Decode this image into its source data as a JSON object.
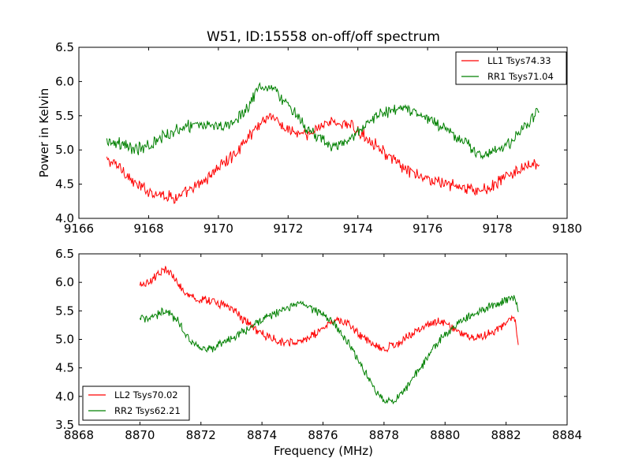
{
  "chart_data": [
    {
      "type": "line",
      "title": "W51, ID:15558 on-off/off spectrum",
      "xlabel": "",
      "ylabel": "Power in Kelvin",
      "xlim": [
        9166,
        9180
      ],
      "ylim": [
        4.0,
        6.5
      ],
      "xticks": [
        9166,
        9168,
        9170,
        9172,
        9174,
        9176,
        9178,
        9180
      ],
      "xtick_labels": [
        "9166",
        "9168",
        "9170",
        "9172",
        "9174",
        "9176",
        "9178",
        "9180"
      ],
      "yticks": [
        4.0,
        4.5,
        5.0,
        5.5,
        6.0,
        6.5
      ],
      "ytick_labels": [
        "4.0",
        "4.5",
        "5.0",
        "5.5",
        "6.0",
        "6.5"
      ],
      "legend_position": "top-right",
      "grid": false,
      "noise": 0.07,
      "series": [
        {
          "name": "LL1 Tsys74.33",
          "color": "#ff0000",
          "x_range": [
            9166.8,
            9179.2
          ],
          "points": [
            [
              9166.8,
              4.85
            ],
            [
              9167.2,
              4.75
            ],
            [
              9167.6,
              4.5
            ],
            [
              9168.0,
              4.4
            ],
            [
              9168.4,
              4.35
            ],
            [
              9168.8,
              4.3
            ],
            [
              9169.2,
              4.4
            ],
            [
              9169.6,
              4.55
            ],
            [
              9170.0,
              4.75
            ],
            [
              9170.4,
              4.9
            ],
            [
              9170.8,
              5.15
            ],
            [
              9171.2,
              5.4
            ],
            [
              9171.5,
              5.52
            ],
            [
              9171.8,
              5.35
            ],
            [
              9172.2,
              5.25
            ],
            [
              9172.6,
              5.2
            ],
            [
              9173.0,
              5.4
            ],
            [
              9173.4,
              5.4
            ],
            [
              9173.8,
              5.35
            ],
            [
              9174.2,
              5.2
            ],
            [
              9174.6,
              5.05
            ],
            [
              9175.0,
              4.85
            ],
            [
              9175.4,
              4.7
            ],
            [
              9175.8,
              4.6
            ],
            [
              9176.2,
              4.55
            ],
            [
              9176.6,
              4.5
            ],
            [
              9177.0,
              4.45
            ],
            [
              9177.4,
              4.4
            ],
            [
              9177.8,
              4.45
            ],
            [
              9178.2,
              4.6
            ],
            [
              9178.6,
              4.7
            ],
            [
              9179.2,
              4.8
            ]
          ]
        },
        {
          "name": "RR1 Tsys71.04",
          "color": "#008000",
          "x_range": [
            9166.8,
            9179.2
          ],
          "points": [
            [
              9166.8,
              5.15
            ],
            [
              9167.2,
              5.1
            ],
            [
              9167.6,
              5.0
            ],
            [
              9168.0,
              5.05
            ],
            [
              9168.4,
              5.2
            ],
            [
              9168.8,
              5.3
            ],
            [
              9169.2,
              5.35
            ],
            [
              9169.6,
              5.35
            ],
            [
              9170.0,
              5.35
            ],
            [
              9170.4,
              5.4
            ],
            [
              9170.8,
              5.6
            ],
            [
              9171.2,
              5.95
            ],
            [
              9171.6,
              5.9
            ],
            [
              9172.0,
              5.65
            ],
            [
              9172.4,
              5.4
            ],
            [
              9172.8,
              5.2
            ],
            [
              9173.2,
              5.05
            ],
            [
              9173.6,
              5.1
            ],
            [
              9174.0,
              5.25
            ],
            [
              9174.4,
              5.45
            ],
            [
              9174.8,
              5.55
            ],
            [
              9175.2,
              5.6
            ],
            [
              9175.6,
              5.55
            ],
            [
              9176.0,
              5.45
            ],
            [
              9176.4,
              5.35
            ],
            [
              9176.8,
              5.2
            ],
            [
              9177.2,
              5.05
            ],
            [
              9177.6,
              4.9
            ],
            [
              9178.0,
              5.0
            ],
            [
              9178.4,
              5.1
            ],
            [
              9178.8,
              5.35
            ],
            [
              9179.2,
              5.6
            ]
          ]
        }
      ]
    },
    {
      "type": "line",
      "title": "",
      "xlabel": "Frequency (MHz)",
      "ylabel": "",
      "xlim": [
        8868,
        8884
      ],
      "ylim": [
        3.5,
        6.5
      ],
      "xticks": [
        8868,
        8870,
        8872,
        8874,
        8876,
        8878,
        8880,
        8882,
        8884
      ],
      "xtick_labels": [
        "8868",
        "8870",
        "8872",
        "8874",
        "8876",
        "8878",
        "8880",
        "8882",
        "8884"
      ],
      "yticks": [
        3.5,
        4.0,
        4.5,
        5.0,
        5.5,
        6.0,
        6.5
      ],
      "ytick_labels": [
        "3.5",
        "4.0",
        "4.5",
        "5.0",
        "5.5",
        "6.0",
        "6.5"
      ],
      "legend_position": "bottom-left",
      "grid": false,
      "noise": 0.06,
      "series": [
        {
          "name": "LL2 Tsys70.02",
          "color": "#ff0000",
          "x_range": [
            8870.0,
            8882.4
          ],
          "points": [
            [
              8870.0,
              5.95
            ],
            [
              8870.4,
              6.05
            ],
            [
              8870.8,
              6.25
            ],
            [
              8871.1,
              6.1
            ],
            [
              8871.5,
              5.8
            ],
            [
              8871.9,
              5.7
            ],
            [
              8872.4,
              5.65
            ],
            [
              8872.8,
              5.6
            ],
            [
              8873.2,
              5.45
            ],
            [
              8873.6,
              5.25
            ],
            [
              8874.0,
              5.1
            ],
            [
              8874.4,
              5.0
            ],
            [
              8874.8,
              4.95
            ],
            [
              8875.2,
              4.95
            ],
            [
              8875.6,
              5.05
            ],
            [
              8876.0,
              5.2
            ],
            [
              8876.4,
              5.35
            ],
            [
              8876.8,
              5.3
            ],
            [
              8877.2,
              5.1
            ],
            [
              8877.6,
              4.9
            ],
            [
              8878.0,
              4.85
            ],
            [
              8878.4,
              4.9
            ],
            [
              8878.8,
              5.05
            ],
            [
              8879.2,
              5.2
            ],
            [
              8879.6,
              5.3
            ],
            [
              8880.0,
              5.3
            ],
            [
              8880.4,
              5.15
            ],
            [
              8880.8,
              5.05
            ],
            [
              8881.2,
              5.05
            ],
            [
              8881.6,
              5.15
            ],
            [
              8882.0,
              5.3
            ],
            [
              8882.3,
              5.4
            ],
            [
              8882.4,
              4.85
            ]
          ]
        },
        {
          "name": "RR2 Tsys62.21",
          "color": "#008000",
          "x_range": [
            8870.0,
            8882.4
          ],
          "points": [
            [
              8870.0,
              5.35
            ],
            [
              8870.4,
              5.4
            ],
            [
              8870.8,
              5.5
            ],
            [
              8871.2,
              5.35
            ],
            [
              8871.6,
              5.0
            ],
            [
              8872.0,
              4.85
            ],
            [
              8872.4,
              4.85
            ],
            [
              8872.8,
              4.95
            ],
            [
              8873.2,
              5.1
            ],
            [
              8873.6,
              5.2
            ],
            [
              8874.0,
              5.35
            ],
            [
              8874.4,
              5.45
            ],
            [
              8874.8,
              5.55
            ],
            [
              8875.2,
              5.65
            ],
            [
              8875.6,
              5.55
            ],
            [
              8876.0,
              5.45
            ],
            [
              8876.4,
              5.25
            ],
            [
              8876.8,
              4.95
            ],
            [
              8877.2,
              4.6
            ],
            [
              8877.6,
              4.2
            ],
            [
              8878.0,
              3.88
            ],
            [
              8878.4,
              3.95
            ],
            [
              8878.8,
              4.2
            ],
            [
              8879.2,
              4.5
            ],
            [
              8879.6,
              4.85
            ],
            [
              8880.0,
              5.1
            ],
            [
              8880.4,
              5.25
            ],
            [
              8880.8,
              5.4
            ],
            [
              8881.2,
              5.5
            ],
            [
              8881.6,
              5.6
            ],
            [
              8882.0,
              5.7
            ],
            [
              8882.3,
              5.75
            ],
            [
              8882.4,
              5.45
            ]
          ]
        }
      ]
    }
  ]
}
